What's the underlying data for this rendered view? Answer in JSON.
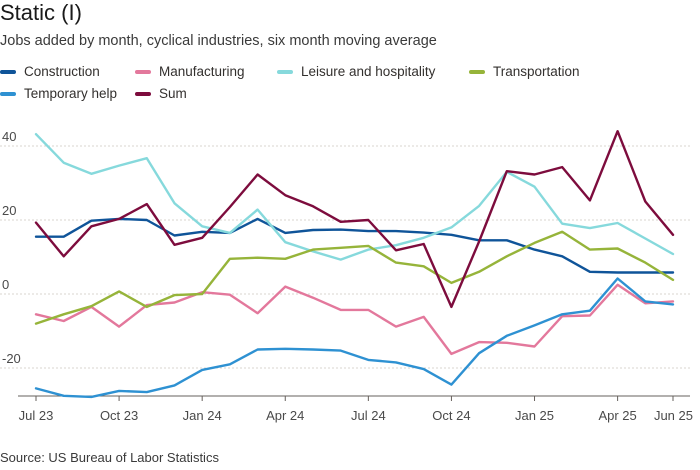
{
  "header": {
    "title": "Static (I)",
    "subtitle": "Jobs added by month, cyclical industries, six month moving average"
  },
  "footer": {
    "source": "Source: US Bureau of Labor Statistics"
  },
  "chart_data": {
    "type": "line",
    "title": "Static (I)",
    "subtitle": "Jobs added by month, cyclical industries, six month moving average",
    "xlabel": "",
    "ylabel": "",
    "x": [
      "2023-07",
      "2023-08",
      "2023-09",
      "2023-10",
      "2023-11",
      "2023-12",
      "2024-01",
      "2024-02",
      "2024-03",
      "2024-04",
      "2024-05",
      "2024-06",
      "2024-07",
      "2024-08",
      "2024-09",
      "2024-10",
      "2024-11",
      "2024-12",
      "2025-01",
      "2025-02",
      "2025-03",
      "2025-04",
      "2025-05",
      "2025-06"
    ],
    "x_tick_labels": [
      "Jul 23",
      "Oct 23",
      "Jan 24",
      "Apr 24",
      "Jul 24",
      "Oct 24",
      "Jan 25",
      "Apr 25",
      "Jun 25"
    ],
    "x_tick_positions": [
      "2023-07",
      "2023-10",
      "2024-01",
      "2024-04",
      "2024-07",
      "2024-10",
      "2025-01",
      "2025-04",
      "2025-06"
    ],
    "y_ticks": [
      40,
      20,
      0,
      -20
    ],
    "ylim": [
      -28,
      46
    ],
    "grid": true,
    "legend_position": "top",
    "series": [
      {
        "name": "Construction",
        "color": "#0f5499",
        "values": [
          15.5,
          15.5,
          19.8,
          20.3,
          20.0,
          15.8,
          16.8,
          16.5,
          20.3,
          16.5,
          17.3,
          17.4,
          17.0,
          17.0,
          16.6,
          16.0,
          14.5,
          14.5,
          12.0,
          10.2,
          6.0,
          5.8,
          5.8,
          5.8
        ]
      },
      {
        "name": "Manufacturing",
        "color": "#e3789c",
        "values": [
          -5.5,
          -7.3,
          -3.5,
          -8.8,
          -3.0,
          -2.3,
          0.5,
          -0.2,
          -5.2,
          2.0,
          -1.0,
          -4.3,
          -4.3,
          -8.8,
          -6.2,
          -16.2,
          -13.0,
          -13.2,
          -14.2,
          -6.0,
          -5.8,
          2.5,
          -2.5,
          -2.0
        ]
      },
      {
        "name": "Leisure and hospitality",
        "color": "#86d9dc",
        "values": [
          43.2,
          35.5,
          32.5,
          34.7,
          36.7,
          24.5,
          18.3,
          16.5,
          22.8,
          14.0,
          11.5,
          9.3,
          12.0,
          13.2,
          15.2,
          18.0,
          23.8,
          33.0,
          29.0,
          19.0,
          17.8,
          19.2,
          15.0,
          10.8
        ]
      },
      {
        "name": "Transportation",
        "color": "#96b43a",
        "values": [
          -8.0,
          -5.5,
          -3.3,
          0.7,
          -3.5,
          -0.3,
          0.0,
          9.5,
          9.8,
          9.5,
          12.0,
          12.5,
          13.0,
          8.5,
          7.5,
          3.0,
          6.0,
          10.2,
          13.8,
          16.8,
          12.0,
          12.3,
          8.5,
          3.8
        ]
      },
      {
        "name": "Temporary help",
        "color": "#2e91d2",
        "values": [
          -25.5,
          -27.5,
          -27.8,
          -26.2,
          -26.5,
          -24.7,
          -20.5,
          -19.0,
          -15.0,
          -14.8,
          -15.0,
          -15.3,
          -17.8,
          -18.5,
          -20.3,
          -24.5,
          -16.0,
          -11.3,
          -8.5,
          -5.5,
          -4.5,
          4.2,
          -2.0,
          -2.8
        ]
      },
      {
        "name": "Sum",
        "color": "#7d0c3d",
        "values": [
          19.3,
          10.2,
          18.3,
          20.3,
          24.3,
          13.3,
          15.2,
          23.5,
          32.3,
          26.7,
          23.7,
          19.5,
          20.0,
          11.8,
          13.5,
          -3.5,
          14.2,
          33.2,
          32.3,
          34.3,
          25.3,
          44.0,
          25.0,
          16.0
        ]
      }
    ]
  },
  "legend_layout": [
    [
      "Construction",
      "Manufacturing",
      "Leisure and hospitality",
      "Transportation"
    ],
    [
      "Temporary help",
      "Sum"
    ]
  ]
}
